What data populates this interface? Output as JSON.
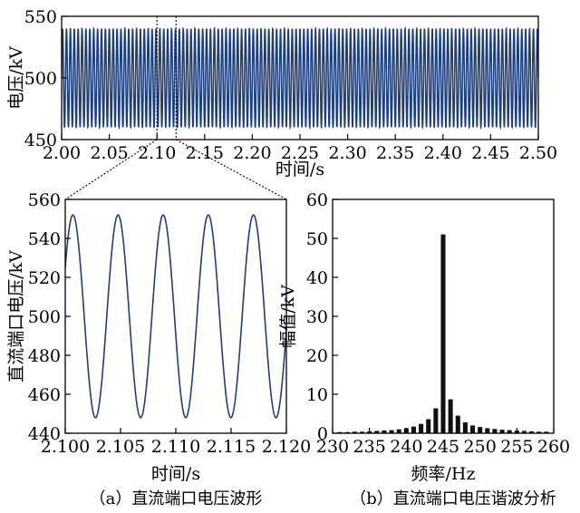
{
  "chart_data": [
    {
      "id": "top",
      "type": "line",
      "xlabel": "时间/s",
      "ylabel": "电压/kV",
      "xlim": [
        2.0,
        2.5
      ],
      "ylim": [
        450,
        550
      ],
      "xticks": [
        "2.00",
        "2.05",
        "2.10",
        "2.15",
        "2.20",
        "2.25",
        "2.30",
        "2.35",
        "2.40",
        "2.45",
        "2.50"
      ],
      "yticks": [
        "550",
        "500",
        "450"
      ],
      "signal": {
        "mean": 500,
        "amplitude": 40,
        "frequency_hz": 245
      },
      "zoom_window": [
        2.1,
        2.12
      ],
      "line_color": "#1f3f7a"
    },
    {
      "id": "a",
      "type": "line",
      "caption": "（a）直流端口电压波形",
      "xlabel": "时间/s",
      "ylabel": "直流端口电压/kV",
      "xlim": [
        2.1,
        2.12
      ],
      "ylim": [
        440,
        560
      ],
      "xticks": [
        "2.100",
        "2.105",
        "2.110",
        "2.115",
        "2.120"
      ],
      "yticks": [
        "560",
        "540",
        "520",
        "500",
        "480",
        "460",
        "440"
      ],
      "signal": {
        "mean": 500,
        "amplitude": 52,
        "frequency_hz": 245,
        "start_value": 525
      },
      "line_color": "#1f3f7a"
    },
    {
      "id": "b",
      "type": "bar",
      "caption": "（b）直流端口电压谐波分析",
      "xlabel": "频率/Hz",
      "ylabel": "幅值/kV",
      "xlim": [
        230,
        260
      ],
      "ylim": [
        0,
        60
      ],
      "xticks": [
        "230",
        "235",
        "240",
        "245",
        "250",
        "255",
        "260"
      ],
      "yticks": [
        "60",
        "50",
        "40",
        "30",
        "20",
        "10",
        "0"
      ],
      "x": [
        231,
        232,
        233,
        234,
        235,
        236,
        237,
        238,
        239,
        240,
        241,
        242,
        243,
        244,
        245,
        246,
        247,
        248,
        249,
        250,
        251,
        252,
        253,
        254,
        255,
        256,
        257,
        258,
        259
      ],
      "values": [
        0.3,
        0.3,
        0.4,
        0.4,
        0.5,
        0.6,
        0.7,
        0.8,
        1.0,
        1.3,
        1.7,
        2.4,
        3.6,
        6.4,
        51,
        8.7,
        4.5,
        2.8,
        2.0,
        1.6,
        1.3,
        1.1,
        0.9,
        0.8,
        0.7,
        0.6,
        0.5,
        0.4,
        0.4
      ],
      "bar_color": "#111111"
    }
  ]
}
